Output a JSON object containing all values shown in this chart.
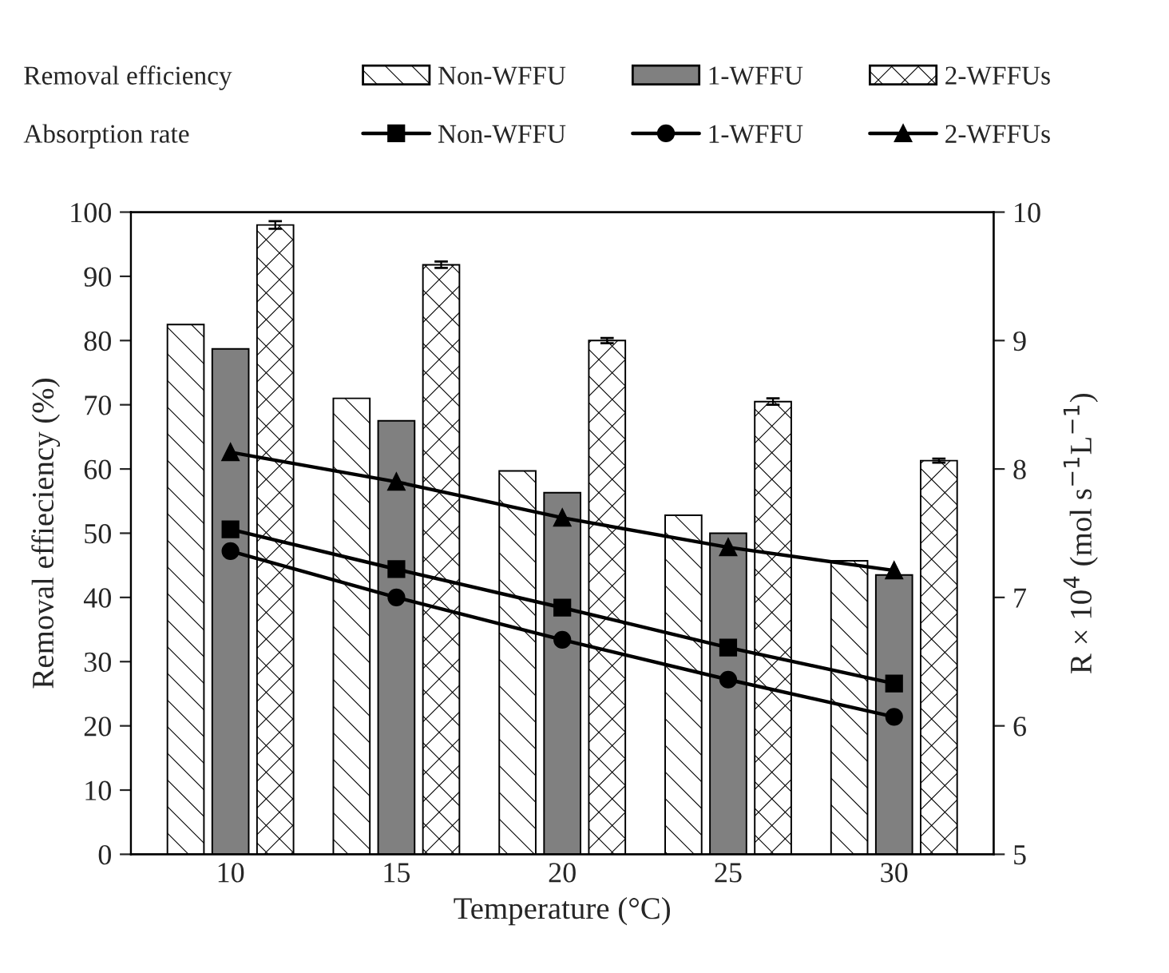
{
  "chart_data": {
    "type": "bar",
    "xlabel": "Temperature (°C)",
    "ylabel": "Removal effieciency (%)",
    "y2label": "R × 10$^{4}$ (mol s$^{−1}$L$^{−1}$)",
    "categories": [
      "10",
      "15",
      "20",
      "25",
      "30"
    ],
    "series": [
      {
        "name": "Non-WFFU",
        "color": "#000000",
        "values": [
          82.5,
          71,
          59.7,
          52.8,
          45.7
        ]
      },
      {
        "name": "1-WFFU",
        "color": "#808080",
        "values": [
          78.7,
          67.5,
          56.3,
          50,
          43.5
        ]
      },
      {
        "name": "2-WFFUs",
        "color": "#000000",
        "values": [
          98,
          91.8,
          80,
          70.5,
          61.3
        ],
        "errors": [
          0.6,
          0.5,
          0.4,
          0.5,
          0.3
        ]
      },
      {
        "name": "Non-WFFU",
        "type": "line",
        "axis": "y2",
        "color": "#000000",
        "marker": "square",
        "values": [
          7.53,
          7.22,
          6.92,
          6.61,
          6.33
        ]
      },
      {
        "name": "1-WFFU",
        "type": "line",
        "axis": "y2",
        "color": "#000000",
        "marker": "circle",
        "values": [
          7.36,
          7.0,
          6.67,
          6.36,
          6.07
        ]
      },
      {
        "name": "2-WFFUs",
        "type": "line",
        "axis": "y2",
        "color": "#000000",
        "marker": "triangle",
        "values": [
          8.13,
          7.9,
          7.62,
          7.39,
          7.21
        ]
      }
    ],
    "annotations": [
      "Removal efficiency",
      "Absorption rate"
    ],
    "ylim": [
      0,
      100
    ],
    "yticks": [
      0,
      10,
      20,
      30,
      40,
      50,
      60,
      70,
      80,
      90,
      100
    ],
    "y2lim": [
      5,
      10
    ],
    "y2ticks": [
      5,
      6,
      7,
      8,
      9,
      10
    ],
    "line_style": "solid",
    "grid": false,
    "legend": "top"
  }
}
